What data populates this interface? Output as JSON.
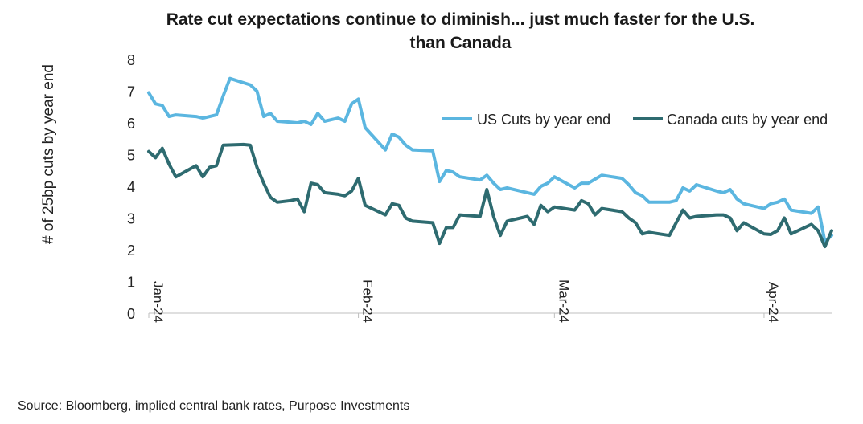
{
  "chart_data": {
    "type": "line",
    "title_lines": [
      "Rate cut expectations continue to diminish... just much faster for the U.S.",
      "than Canada"
    ],
    "ylabel": "# of 25bp cuts by year end",
    "xlabel": "",
    "ylim": [
      0,
      8
    ],
    "yticks": [
      "0",
      "1",
      "2",
      "3",
      "4",
      "5",
      "6",
      "7",
      "8"
    ],
    "xlim": [
      "2024-01-01",
      "2024-04-11"
    ],
    "xticks": [
      {
        "date": "2024-01-01",
        "label": "Jan-24"
      },
      {
        "date": "2024-02-01",
        "label": "Feb-24"
      },
      {
        "date": "2024-03-01",
        "label": "Mar-24"
      },
      {
        "date": "2024-04-01",
        "label": "Apr-24"
      }
    ],
    "grid": false,
    "legend_position": "upper-right",
    "series": [
      {
        "name": "US Cuts by year end",
        "color": "#5BB6E0",
        "points": [
          [
            "2024-01-01",
            6.95
          ],
          [
            "2024-01-02",
            6.6
          ],
          [
            "2024-01-03",
            6.55
          ],
          [
            "2024-01-04",
            6.2
          ],
          [
            "2024-01-05",
            6.25
          ],
          [
            "2024-01-08",
            6.2
          ],
          [
            "2024-01-09",
            6.15
          ],
          [
            "2024-01-10",
            6.2
          ],
          [
            "2024-01-11",
            6.25
          ],
          [
            "2024-01-12",
            6.85
          ],
          [
            "2024-01-13",
            7.4
          ],
          [
            "2024-01-16",
            7.2
          ],
          [
            "2024-01-17",
            7.0
          ],
          [
            "2024-01-18",
            6.2
          ],
          [
            "2024-01-19",
            6.3
          ],
          [
            "2024-01-20",
            6.05
          ],
          [
            "2024-01-22",
            6.02
          ],
          [
            "2024-01-23",
            6.0
          ],
          [
            "2024-01-24",
            6.05
          ],
          [
            "2024-01-25",
            5.95
          ],
          [
            "2024-01-26",
            6.3
          ],
          [
            "2024-01-27",
            6.05
          ],
          [
            "2024-01-29",
            6.15
          ],
          [
            "2024-01-30",
            6.05
          ],
          [
            "2024-01-31",
            6.6
          ],
          [
            "2024-02-01",
            6.75
          ],
          [
            "2024-02-02",
            5.85
          ],
          [
            "2024-02-05",
            5.15
          ],
          [
            "2024-02-06",
            5.65
          ],
          [
            "2024-02-07",
            5.55
          ],
          [
            "2024-02-08",
            5.3
          ],
          [
            "2024-02-09",
            5.15
          ],
          [
            "2024-02-12",
            5.12
          ],
          [
            "2024-02-13",
            4.15
          ],
          [
            "2024-02-14",
            4.5
          ],
          [
            "2024-02-15",
            4.45
          ],
          [
            "2024-02-16",
            4.3
          ],
          [
            "2024-02-19",
            4.2
          ],
          [
            "2024-02-20",
            4.35
          ],
          [
            "2024-02-21",
            4.1
          ],
          [
            "2024-02-22",
            3.9
          ],
          [
            "2024-02-23",
            3.95
          ],
          [
            "2024-02-26",
            3.8
          ],
          [
            "2024-02-27",
            3.75
          ],
          [
            "2024-02-28",
            4.0
          ],
          [
            "2024-02-29",
            4.1
          ],
          [
            "2024-03-01",
            4.3
          ],
          [
            "2024-03-04",
            3.95
          ],
          [
            "2024-03-05",
            4.1
          ],
          [
            "2024-03-06",
            4.1
          ],
          [
            "2024-03-08",
            4.35
          ],
          [
            "2024-03-11",
            4.25
          ],
          [
            "2024-03-12",
            4.05
          ],
          [
            "2024-03-13",
            3.8
          ],
          [
            "2024-03-14",
            3.7
          ],
          [
            "2024-03-15",
            3.5
          ],
          [
            "2024-03-18",
            3.5
          ],
          [
            "2024-03-19",
            3.55
          ],
          [
            "2024-03-20",
            3.95
          ],
          [
            "2024-03-21",
            3.85
          ],
          [
            "2024-03-22",
            4.05
          ],
          [
            "2024-03-25",
            3.85
          ],
          [
            "2024-03-26",
            3.8
          ],
          [
            "2024-03-27",
            3.9
          ],
          [
            "2024-03-28",
            3.6
          ],
          [
            "2024-03-29",
            3.45
          ],
          [
            "2024-04-01",
            3.3
          ],
          [
            "2024-04-02",
            3.45
          ],
          [
            "2024-04-03",
            3.5
          ],
          [
            "2024-04-04",
            3.6
          ],
          [
            "2024-04-05",
            3.25
          ],
          [
            "2024-04-08",
            3.15
          ],
          [
            "2024-04-09",
            3.35
          ],
          [
            "2024-04-10",
            2.25
          ],
          [
            "2024-04-11",
            2.45
          ]
        ]
      },
      {
        "name": "Canada cuts by year end",
        "color": "#2E6B70",
        "points": [
          [
            "2024-01-01",
            5.1
          ],
          [
            "2024-01-02",
            4.9
          ],
          [
            "2024-01-03",
            5.2
          ],
          [
            "2024-01-04",
            4.7
          ],
          [
            "2024-01-05",
            4.3
          ],
          [
            "2024-01-08",
            4.65
          ],
          [
            "2024-01-09",
            4.3
          ],
          [
            "2024-01-10",
            4.6
          ],
          [
            "2024-01-11",
            4.65
          ],
          [
            "2024-01-12",
            5.3
          ],
          [
            "2024-01-15",
            5.32
          ],
          [
            "2024-01-16",
            5.3
          ],
          [
            "2024-01-17",
            4.6
          ],
          [
            "2024-01-18",
            4.1
          ],
          [
            "2024-01-19",
            3.65
          ],
          [
            "2024-01-20",
            3.5
          ],
          [
            "2024-01-22",
            3.55
          ],
          [
            "2024-01-23",
            3.6
          ],
          [
            "2024-01-24",
            3.2
          ],
          [
            "2024-01-25",
            4.1
          ],
          [
            "2024-01-26",
            4.05
          ],
          [
            "2024-01-27",
            3.8
          ],
          [
            "2024-01-29",
            3.75
          ],
          [
            "2024-01-30",
            3.7
          ],
          [
            "2024-01-31",
            3.85
          ],
          [
            "2024-02-01",
            4.25
          ],
          [
            "2024-02-02",
            3.4
          ],
          [
            "2024-02-05",
            3.1
          ],
          [
            "2024-02-06",
            3.45
          ],
          [
            "2024-02-07",
            3.4
          ],
          [
            "2024-02-08",
            3.0
          ],
          [
            "2024-02-09",
            2.9
          ],
          [
            "2024-02-12",
            2.85
          ],
          [
            "2024-02-13",
            2.2
          ],
          [
            "2024-02-14",
            2.7
          ],
          [
            "2024-02-15",
            2.7
          ],
          [
            "2024-02-16",
            3.1
          ],
          [
            "2024-02-19",
            3.05
          ],
          [
            "2024-02-20",
            3.9
          ],
          [
            "2024-02-21",
            3.05
          ],
          [
            "2024-02-22",
            2.45
          ],
          [
            "2024-02-23",
            2.9
          ],
          [
            "2024-02-26",
            3.05
          ],
          [
            "2024-02-27",
            2.8
          ],
          [
            "2024-02-28",
            3.4
          ],
          [
            "2024-02-29",
            3.2
          ],
          [
            "2024-03-01",
            3.35
          ],
          [
            "2024-03-04",
            3.25
          ],
          [
            "2024-03-05",
            3.55
          ],
          [
            "2024-03-06",
            3.45
          ],
          [
            "2024-03-07",
            3.1
          ],
          [
            "2024-03-08",
            3.3
          ],
          [
            "2024-03-11",
            3.2
          ],
          [
            "2024-03-12",
            3.0
          ],
          [
            "2024-03-13",
            2.85
          ],
          [
            "2024-03-14",
            2.5
          ],
          [
            "2024-03-15",
            2.55
          ],
          [
            "2024-03-18",
            2.45
          ],
          [
            "2024-03-19",
            2.85
          ],
          [
            "2024-03-20",
            3.25
          ],
          [
            "2024-03-21",
            3.0
          ],
          [
            "2024-03-22",
            3.05
          ],
          [
            "2024-03-25",
            3.1
          ],
          [
            "2024-03-26",
            3.1
          ],
          [
            "2024-03-27",
            3.0
          ],
          [
            "2024-03-28",
            2.6
          ],
          [
            "2024-03-29",
            2.85
          ],
          [
            "2024-04-01",
            2.5
          ],
          [
            "2024-04-02",
            2.48
          ],
          [
            "2024-04-03",
            2.6
          ],
          [
            "2024-04-04",
            3.0
          ],
          [
            "2024-04-05",
            2.5
          ],
          [
            "2024-04-08",
            2.8
          ],
          [
            "2024-04-09",
            2.6
          ],
          [
            "2024-04-10",
            2.1
          ],
          [
            "2024-04-11",
            2.6
          ]
        ]
      }
    ]
  },
  "footer": {
    "source": "Source: Bloomberg, implied central bank rates, Purpose Investments"
  }
}
